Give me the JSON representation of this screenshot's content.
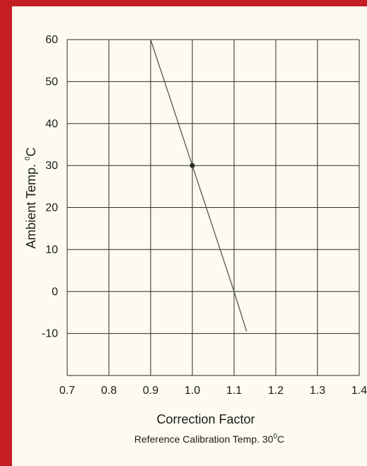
{
  "colors": {
    "background": "#c41e24",
    "panel": "#fdfbf0",
    "grid": "#2a2a2a",
    "line": "#555555",
    "point": "#2a2a2a"
  },
  "chart_data": {
    "type": "line",
    "xlabel": "Correction Factor",
    "ylabel_main": "Ambient Temp. ",
    "ylabel_sup": "0",
    "ylabel_unit": "C",
    "caption_main": "Reference Calibration Temp. 30",
    "caption_sup": "0",
    "caption_unit": "C",
    "xlim": [
      0.7,
      1.4
    ],
    "ylim": [
      -20,
      60
    ],
    "x_ticks": [
      "0.7",
      "0.8",
      "0.9",
      "1.0",
      "1.1",
      "1.2",
      "1.3",
      "1.4"
    ],
    "y_ticks": [
      "60",
      "50",
      "40",
      "30",
      "20",
      "10",
      "0",
      "-10"
    ],
    "grid": true,
    "series": [
      {
        "x": [
          0.9,
          1.0,
          1.1,
          1.13
        ],
        "y": [
          60,
          30,
          0,
          -9.5
        ]
      }
    ],
    "marked_point": {
      "x": 1.0,
      "y": 30
    }
  }
}
